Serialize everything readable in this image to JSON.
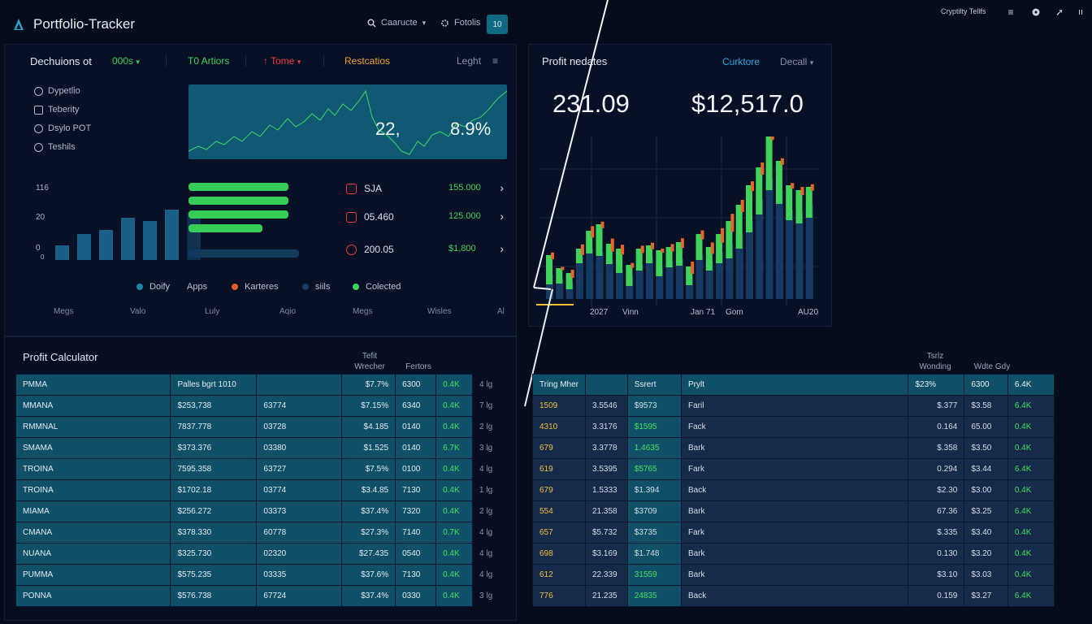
{
  "app": {
    "title": "Portfolio-Tracker"
  },
  "topbar": {
    "search_label": "Caaructe",
    "settings_label": "Fotolis",
    "count_badge": "10",
    "right_label": "Cryptilty Tellfs"
  },
  "left_panel": {
    "tabs": {
      "t1": "Dechuions ot",
      "t2": "000s",
      "t3": "T0 Artiors",
      "t4": "Tome",
      "t5": "Restcatios",
      "t6": "Leght"
    },
    "side_items": [
      "Dypetlio",
      "Teberity",
      "Dsylo POT",
      "Teshils"
    ],
    "spark_values": {
      "v1": "22,",
      "v2": "8.9%"
    },
    "y_labels": [
      "116",
      "20",
      "0",
      "0"
    ],
    "bar_values": [
      18,
      32,
      37,
      52,
      48,
      62,
      58
    ],
    "hbar_values": [
      0.62,
      0.62,
      0.62,
      0.46
    ],
    "tickers": [
      {
        "symbol": "SJA",
        "value": "155.000"
      },
      {
        "symbol": "05.460",
        "value": "125.000"
      },
      {
        "symbol": "200.05",
        "value": "$1,800"
      }
    ],
    "legend": [
      {
        "label": "Doify",
        "color": "#1c8aa0"
      },
      {
        "label": "Apps",
        "color": ""
      },
      {
        "label": "Karteres",
        "color": "#e05a2a"
      },
      {
        "label": "siils",
        "color": "#1a3a60"
      },
      {
        "label": "Colected",
        "color": "#3fd35c"
      }
    ],
    "x_labels": [
      "Megs",
      "Valo",
      "Luly",
      "Aqio",
      "Megs",
      "Wisles",
      "Al"
    ]
  },
  "right_panel": {
    "title": "Profit nedates",
    "link_label": "Curktore",
    "select_label": "Decall",
    "metric1": "231.09",
    "metric2": "$12,517.0",
    "x_labels": [
      "2027",
      "Vinn",
      "Jan 71",
      "Gom",
      "AU20"
    ],
    "candles": [
      [
        30,
        12,
        24,
        8
      ],
      [
        24,
        5,
        14,
        4
      ],
      [
        20,
        8,
        12,
        10
      ],
      [
        52,
        8,
        10,
        13
      ],
      [
        62,
        6,
        22,
        14
      ],
      [
        58,
        5,
        34,
        8
      ],
      [
        48,
        5,
        20,
        16
      ],
      [
        36,
        4,
        26,
        12
      ],
      [
        28,
        12,
        14,
        6
      ],
      [
        42,
        7,
        20,
        9
      ],
      [
        52,
        8,
        14,
        8
      ],
      [
        38,
        10,
        22,
        5
      ],
      [
        46,
        7,
        18,
        9
      ],
      [
        50,
        9,
        20,
        12
      ],
      [
        30,
        13,
        10,
        15
      ],
      [
        55,
        7,
        25,
        11
      ],
      [
        46,
        11,
        18,
        14
      ],
      [
        58,
        14,
        22,
        18
      ],
      [
        68,
        18,
        28,
        22
      ],
      [
        80,
        18,
        36,
        15
      ],
      [
        96,
        14,
        44,
        12
      ],
      [
        122,
        18,
        40,
        15
      ],
      [
        148,
        14,
        56,
        14
      ],
      [
        134,
        17,
        36,
        8
      ],
      [
        110,
        13,
        30,
        7
      ],
      [
        108,
        15,
        26,
        10
      ],
      [
        116,
        16,
        22,
        8
      ]
    ]
  },
  "calc": {
    "title": "Profit Calculator",
    "head1": "Tefit",
    "head1b": "Wrecher",
    "head2": "Fertors",
    "rows": [
      [
        "PMMA",
        "Palles bgrt 1010",
        "",
        "$7.7%",
        "6300",
        "0.4K",
        "4 lg"
      ],
      [
        "MMANA",
        "$253,738",
        "63774",
        "$7.15%",
        "6340",
        "0.4K",
        "7 lg"
      ],
      [
        "RMMNAL",
        "7837.778",
        "03728",
        "$4.185",
        "0140",
        "0.4K",
        "2 lg"
      ],
      [
        "SMAMA",
        "$373.376",
        "03380",
        "$1.525",
        "0140",
        "6.7K",
        "3 lg"
      ],
      [
        "TROINA",
        "7595.358",
        "63727",
        "$7.5%",
        "0100",
        "0.4K",
        "4 lg"
      ],
      [
        "TROINA",
        "$1702.18",
        "03774",
        "$3.4.85",
        "7130",
        "0.4K",
        "1 lg"
      ],
      [
        "MIAMA",
        "$256.272",
        "03373",
        "$37.4%",
        "7320",
        "0.4K",
        "2 lg"
      ],
      [
        "CMANA",
        "$378.330",
        "60778",
        "$27.3%",
        "7140",
        "0.7K",
        "4 lg"
      ],
      [
        "NUANA",
        "$325.730",
        "02320",
        "$27.435",
        "0540",
        "0.4K",
        "4 lg"
      ],
      [
        "PUMMA",
        "$575.235",
        "03335",
        "$37.6%",
        "7130",
        "0.4K",
        "4 lg"
      ],
      [
        "PONNA",
        "$576.738",
        "67724",
        "$37.4%",
        "0330",
        "0.4K",
        "3 lg"
      ]
    ]
  },
  "right_table": {
    "head1": "Tsrlz",
    "head1b": "Wonding",
    "head2": "Wdte Gdy",
    "header_row": [
      "Tring Mher",
      "",
      "Ssrert",
      "Prylt",
      "$23%",
      "6300",
      "6.4K"
    ],
    "rows": [
      [
        "1509",
        "3.5546",
        "$9573",
        "Faril",
        "$.377",
        "$3.58",
        "6.4K"
      ],
      [
        "4310",
        "3.3176",
        "$1595",
        "Fack",
        "0.164",
        "65.00",
        "0.4K"
      ],
      [
        "679",
        "3.3778",
        "1.4635",
        "Bark",
        "$.358",
        "$3.50",
        "0.4K"
      ],
      [
        "619",
        "3.5395",
        "$5765",
        "Fark",
        "0.294",
        "$3.44",
        "6.4K"
      ],
      [
        "679",
        "1.5333",
        "$1.394",
        "Back",
        "$2.30",
        "$3.00",
        "0.4K"
      ],
      [
        "554",
        "21.358",
        "$3709",
        "Bark",
        "67.36",
        "$3.25",
        "6.4K"
      ],
      [
        "657",
        "$5.732",
        "$3735",
        "Fark",
        "$.335",
        "$3.40",
        "0.4K"
      ],
      [
        "698",
        "$3.169",
        "$1.748",
        "Bark",
        "0.130",
        "$3.20",
        "0.4K"
      ],
      [
        "612",
        "22.339",
        "31559",
        "Bark",
        "$3.10",
        "$3.03",
        "0.4K"
      ],
      [
        "776",
        "21.235",
        "24835",
        "Back",
        "0.159",
        "$3.27",
        "6.4K"
      ]
    ]
  }
}
